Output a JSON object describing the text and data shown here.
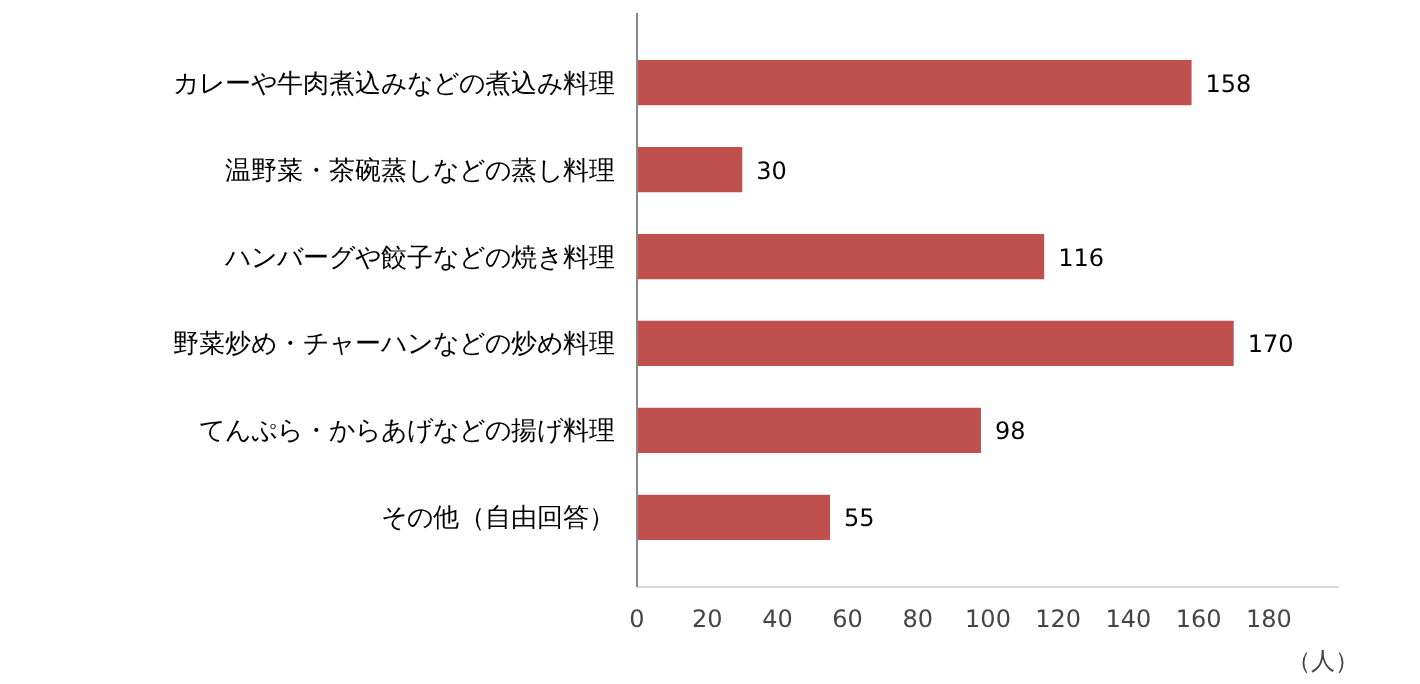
{
  "chart_data": {
    "type": "bar",
    "orientation": "horizontal",
    "categories": [
      "カレーや牛肉煮込みなどの煮込み料理",
      "温野菜・茶碗蒸しなどの蒸し料理",
      "ハンバーグや餃子などの焼き料理",
      "野菜炒め・チャーハンなどの炒め料理",
      "てんぷら・からあげなどの揚げ料理",
      "その他（自由回答）"
    ],
    "values": [
      158,
      30,
      116,
      170,
      98,
      55
    ],
    "color": "#c0504d",
    "xlabel": "（人）",
    "xlim": [
      0,
      200
    ],
    "xticks": [
      0,
      20,
      40,
      60,
      80,
      100,
      120,
      140,
      160,
      180
    ],
    "data_labels": true,
    "grid": false
  }
}
